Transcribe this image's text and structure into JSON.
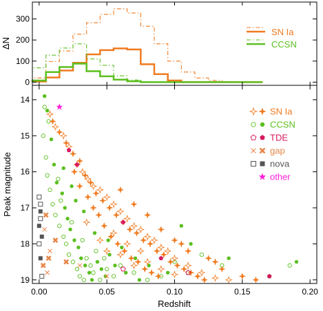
{
  "chart_data": [
    {
      "type": "histogram",
      "panel": "top",
      "ylabel": "ΔN",
      "xlim": [
        -0.005,
        0.205
      ],
      "ylim": [
        -15,
        380
      ],
      "y_ticks": [
        0,
        100,
        200,
        300
      ],
      "bin_width": 0.01,
      "bin_starts": [
        -0.005,
        0.005,
        0.015,
        0.025,
        0.035,
        0.045,
        0.055,
        0.065,
        0.075,
        0.085,
        0.095,
        0.105,
        0.115,
        0.125,
        0.135,
        0.145,
        0.155
      ],
      "legend": {
        "position": "top-right",
        "entries": [
          "SN Ia",
          "CCSN"
        ]
      },
      "series": [
        {
          "name": "SN Ia",
          "style": "solid",
          "color": "#f07a1f",
          "values": [
            3,
            22,
            55,
            92,
            132,
            152,
            160,
            155,
            85,
            38,
            8,
            0,
            0,
            0,
            0,
            0,
            0
          ]
        },
        {
          "name": "SN Ia",
          "style": "dashdot",
          "color": "#f07a1f",
          "values": [
            20,
            98,
            148,
            228,
            282,
            322,
            348,
            328,
            265,
            182,
            100,
            48,
            20,
            8,
            2,
            0,
            0
          ]
        },
        {
          "name": "CCSN",
          "style": "solid",
          "color": "#5bbf1f",
          "values": [
            8,
            48,
            72,
            88,
            52,
            28,
            12,
            4,
            0,
            0,
            0,
            0,
            0,
            0,
            0,
            0,
            0
          ]
        },
        {
          "name": "CCSN",
          "style": "dashdot",
          "color": "#5bbf1f",
          "values": [
            68,
            128,
            162,
            182,
            110,
            80,
            30,
            10,
            2,
            0,
            0,
            0,
            0,
            0,
            0,
            0,
            0
          ]
        }
      ]
    },
    {
      "type": "scatter",
      "panel": "bottom",
      "xlabel": "Redshift",
      "ylabel": "Peak magnitude",
      "xlim": [
        -0.005,
        0.205
      ],
      "ylim": [
        19.1,
        13.6
      ],
      "x_ticks": [
        0.0,
        0.05,
        0.1,
        0.15,
        0.2
      ],
      "x_tick_labels": [
        "0.00",
        "0.05",
        "0.10",
        "0.15",
        "0.20"
      ],
      "y_ticks": [
        14,
        15,
        16,
        17,
        18,
        19
      ],
      "legend": {
        "position": "top-right",
        "entries": [
          {
            "label": "SN Ia",
            "color": "#f07a1f",
            "open_marker": "star-open",
            "filled_marker": "star-filled"
          },
          {
            "label": "CCSN",
            "color": "#5bbf1f",
            "open_marker": "circle-open",
            "filled_marker": "circle-filled"
          },
          {
            "label": "TDE",
            "color": "#d8185e",
            "open_marker": "pentagon-open",
            "filled_marker": "pentagon-filled"
          },
          {
            "label": "gap",
            "color": "#e8864a",
            "open_marker": "x-open",
            "filled_marker": "x-filled"
          },
          {
            "label": "nova",
            "color": "#555555",
            "open_marker": "square-open",
            "filled_marker": "square-filled"
          },
          {
            "label": "other",
            "color": "#ff1fd8",
            "open_marker": "none",
            "filled_marker": "star-filled"
          }
        ]
      },
      "points": {
        "SN Ia": {
          "open": [
            [
              0.008,
              14.4
            ],
            [
              0.012,
              14.75
            ],
            [
              0.018,
              15.0
            ],
            [
              0.022,
              15.3
            ],
            [
              0.028,
              15.8
            ],
            [
              0.032,
              16.0
            ],
            [
              0.036,
              16.2
            ],
            [
              0.04,
              16.4
            ],
            [
              0.045,
              16.5
            ],
            [
              0.05,
              16.7
            ],
            [
              0.055,
              16.9
            ],
            [
              0.06,
              17.1
            ],
            [
              0.065,
              17.3
            ],
            [
              0.07,
              17.5
            ],
            [
              0.075,
              17.6
            ],
            [
              0.08,
              17.8
            ],
            [
              0.085,
              17.9
            ],
            [
              0.09,
              18.1
            ],
            [
              0.095,
              18.2
            ],
            [
              0.1,
              18.4
            ],
            [
              0.11,
              18.6
            ],
            [
              0.12,
              18.8
            ],
            [
              0.13,
              18.95
            ],
            [
              0.14,
              19.0
            ],
            [
              0.06,
              18.3
            ],
            [
              0.07,
              18.6
            ],
            [
              0.05,
              18.2
            ],
            [
              0.08,
              18.5
            ],
            [
              0.09,
              18.7
            ],
            [
              0.1,
              18.85
            ],
            [
              0.045,
              17.9
            ],
            [
              0.035,
              17.4
            ],
            [
              0.055,
              17.7
            ],
            [
              0.065,
              18.0
            ],
            [
              0.075,
              18.2
            ]
          ],
          "filled": [
            [
              0.01,
              14.6
            ],
            [
              0.015,
              14.9
            ],
            [
              0.02,
              15.2
            ],
            [
              0.025,
              15.5
            ],
            [
              0.03,
              15.7
            ],
            [
              0.034,
              16.1
            ],
            [
              0.038,
              16.3
            ],
            [
              0.042,
              16.6
            ],
            [
              0.047,
              16.8
            ],
            [
              0.052,
              17.0
            ],
            [
              0.057,
              17.2
            ],
            [
              0.062,
              17.4
            ],
            [
              0.067,
              17.6
            ],
            [
              0.072,
              17.7
            ],
            [
              0.077,
              17.9
            ],
            [
              0.082,
              18.0
            ],
            [
              0.087,
              18.2
            ],
            [
              0.092,
              18.3
            ],
            [
              0.097,
              18.5
            ],
            [
              0.102,
              18.6
            ],
            [
              0.107,
              18.7
            ],
            [
              0.112,
              18.8
            ],
            [
              0.117,
              18.9
            ],
            [
              0.122,
              19.0
            ],
            [
              0.044,
              17.2
            ],
            [
              0.048,
              17.5
            ],
            [
              0.053,
              17.8
            ],
            [
              0.058,
              18.0
            ],
            [
              0.063,
              18.2
            ],
            [
              0.068,
              18.4
            ],
            [
              0.073,
              18.5
            ],
            [
              0.078,
              18.7
            ],
            [
              0.083,
              18.8
            ],
            [
              0.088,
              18.9
            ],
            [
              0.04,
              17.0
            ],
            [
              0.036,
              16.7
            ],
            [
              0.03,
              16.4
            ],
            [
              0.026,
              16.0
            ],
            [
              0.06,
              16.5
            ],
            [
              0.07,
              16.9
            ],
            [
              0.08,
              17.2
            ],
            [
              0.09,
              17.6
            ],
            [
              0.1,
              17.9
            ],
            [
              0.11,
              18.2
            ],
            [
              0.13,
              18.5
            ],
            [
              0.15,
              18.9
            ],
            [
              0.16,
              19.0
            ],
            [
              0.135,
              18.7
            ],
            [
              0.125,
              18.4
            ],
            [
              0.105,
              18.0
            ]
          ]
        },
        "CCSN": {
          "open": [
            [
              0.003,
              15.0
            ],
            [
              0.005,
              15.6
            ],
            [
              0.006,
              16.1
            ],
            [
              0.008,
              16.5
            ],
            [
              0.01,
              16.9
            ],
            [
              0.012,
              17.2
            ],
            [
              0.015,
              17.5
            ],
            [
              0.018,
              17.8
            ],
            [
              0.02,
              18.0
            ],
            [
              0.022,
              18.3
            ],
            [
              0.025,
              18.5
            ],
            [
              0.028,
              18.7
            ],
            [
              0.03,
              18.9
            ],
            [
              0.033,
              19.0
            ],
            [
              0.035,
              18.4
            ],
            [
              0.038,
              18.6
            ],
            [
              0.04,
              18.8
            ],
            [
              0.045,
              19.0
            ],
            [
              0.05,
              18.7
            ],
            [
              0.055,
              18.9
            ],
            [
              0.014,
              16.2
            ],
            [
              0.016,
              16.8
            ],
            [
              0.024,
              17.4
            ],
            [
              0.032,
              17.9
            ],
            [
              0.042,
              18.2
            ],
            [
              0.048,
              18.4
            ],
            [
              0.06,
              18.6
            ],
            [
              0.07,
              18.8
            ],
            [
              0.08,
              19.0
            ],
            [
              0.12,
              18.3
            ],
            [
              0.135,
              18.6
            ],
            [
              0.17,
              18.9
            ],
            [
              0.185,
              18.6
            ],
            [
              0.09,
              18.9
            ],
            [
              0.004,
              14.2
            ],
            [
              0.007,
              14.6
            ],
            [
              0.1,
              18.5
            ],
            [
              0.11,
              18.8
            ]
          ],
          "filled": [
            [
              0.004,
              13.9
            ],
            [
              0.006,
              14.3
            ],
            [
              0.009,
              15.1
            ],
            [
              0.011,
              15.8
            ],
            [
              0.013,
              16.3
            ],
            [
              0.017,
              16.6
            ],
            [
              0.019,
              17.0
            ],
            [
              0.021,
              17.3
            ],
            [
              0.023,
              17.6
            ],
            [
              0.026,
              17.9
            ],
            [
              0.029,
              18.1
            ],
            [
              0.031,
              18.4
            ],
            [
              0.034,
              18.6
            ],
            [
              0.037,
              18.8
            ],
            [
              0.039,
              19.0
            ],
            [
              0.043,
              18.5
            ],
            [
              0.046,
              18.7
            ],
            [
              0.049,
              18.9
            ],
            [
              0.052,
              18.3
            ],
            [
              0.056,
              18.6
            ],
            [
              0.027,
              16.8
            ],
            [
              0.033,
              17.1
            ],
            [
              0.041,
              17.7
            ],
            [
              0.051,
              17.9
            ],
            [
              0.061,
              18.1
            ],
            [
              0.071,
              18.4
            ],
            [
              0.081,
              18.6
            ],
            [
              0.105,
              17.5
            ],
            [
              0.112,
              18.0
            ],
            [
              0.14,
              18.4
            ],
            [
              0.19,
              18.5
            ],
            [
              0.018,
              15.9
            ],
            [
              0.024,
              16.4
            ],
            [
              0.064,
              18.8
            ],
            [
              0.074,
              19.0
            ],
            [
              0.095,
              18.8
            ]
          ]
        },
        "TDE": {
          "open": [
            [
              0.062,
              18.7
            ],
            [
              0.11,
              18.8
            ]
          ],
          "filled": [
            [
              0.022,
              15.4
            ],
            [
              0.028,
              15.8
            ],
            [
              0.062,
              17.4
            ],
            [
              0.09,
              18.4
            ],
            [
              0.17,
              18.9
            ]
          ]
        },
        "gap": {
          "open": [
            [
              0.004,
              17.6
            ],
            [
              0.008,
              18.2
            ],
            [
              0.006,
              18.8
            ],
            [
              0.03,
              18.6
            ],
            [
              0.05,
              18.9
            ]
          ],
          "filled": [
            [
              0.005,
              17.2
            ],
            [
              0.007,
              18.4
            ],
            [
              0.003,
              18.6
            ],
            [
              0.012,
              17.9
            ],
            [
              0.02,
              18.5
            ]
          ]
        },
        "nova": {
          "open": [
            [
              0.0,
              16.7
            ],
            [
              0.001,
              17.3
            ],
            [
              0.0,
              18.0
            ],
            [
              0.002,
              18.9
            ],
            [
              0.001,
              16.9
            ]
          ],
          "filled": [
            [
              0.001,
              17.1
            ],
            [
              0.0,
              17.5
            ],
            [
              0.002,
              17.8
            ],
            [
              0.001,
              18.4
            ]
          ]
        },
        "other": {
          "open": [],
          "filled": [
            [
              0.015,
              14.2
            ]
          ]
        }
      }
    }
  ]
}
